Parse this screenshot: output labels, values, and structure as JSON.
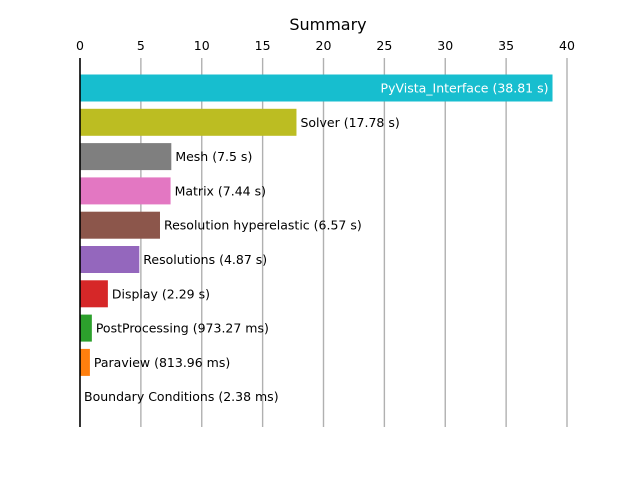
{
  "chart_data": {
    "type": "bar",
    "orientation": "horizontal",
    "title": "Summary",
    "xaxis_position": "top",
    "xlim": [
      0,
      40
    ],
    "xticks": [
      0,
      5,
      10,
      15,
      20,
      25,
      30,
      35,
      40
    ],
    "grid": "vertical",
    "categories": [
      "PyVista_Interface",
      "Solver",
      "Mesh",
      "Matrix",
      "Resolution hyperelastic",
      "Resolutions",
      "Display",
      "PostProcessing",
      "Paraview",
      "Boundary Conditions"
    ],
    "values": [
      38.81,
      17.78,
      7.5,
      7.44,
      6.57,
      4.87,
      2.29,
      0.97327,
      0.81396,
      0.00238
    ],
    "labels": [
      "PyVista_Interface (38.81 s)",
      "Solver (17.78 s)",
      "Mesh (7.5 s)",
      "Matrix (7.44 s)",
      "Resolution hyperelastic (6.57 s)",
      "Resolutions (4.87 s)",
      "Display (2.29 s)",
      "PostProcessing (973.27 ms)",
      "Paraview (813.96 ms)",
      "Boundary Conditions (2.38 ms)"
    ],
    "colors": [
      "#17becf",
      "#bcbd22",
      "#7f7f7f",
      "#e377c2",
      "#8c564b",
      "#9467bd",
      "#d62728",
      "#2ca02c",
      "#ff7f0e",
      "#1f77b4"
    ],
    "label_inside": [
      true,
      false,
      false,
      false,
      false,
      false,
      false,
      false,
      false,
      false
    ]
  }
}
